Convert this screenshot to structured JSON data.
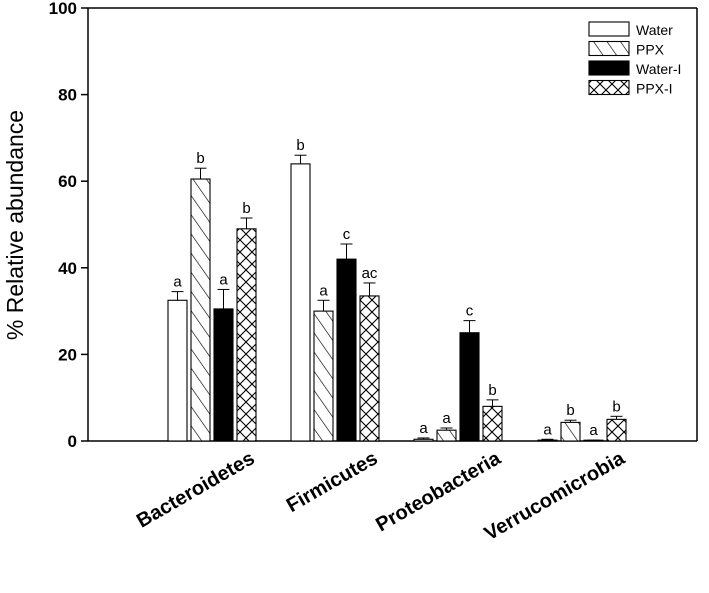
{
  "chart_data": {
    "type": "bar",
    "title": "",
    "xlabel": "",
    "ylabel": "% Relative abundance",
    "ylim": [
      0,
      100
    ],
    "yticks": [
      0,
      20,
      40,
      60,
      80,
      100
    ],
    "grid": false,
    "legend_position": "top-right",
    "categories": [
      "Bacteroidetes",
      "Firmicutes",
      "Proteobacteria",
      "Verrucomicrobia"
    ],
    "series": [
      {
        "name": "Water",
        "pattern": "empty",
        "color": "#ffffff",
        "values": [
          32.5,
          64,
          0.4,
          0.2
        ],
        "errors": [
          2,
          2,
          0.3,
          0.2
        ],
        "significance": [
          "a",
          "b",
          "a",
          "a"
        ]
      },
      {
        "name": "PPX",
        "pattern": "diagonal",
        "color": "#ffffff",
        "values": [
          60.5,
          30,
          2.5,
          4.3
        ],
        "errors": [
          2.5,
          2.5,
          0.5,
          0.5
        ],
        "significance": [
          "b",
          "a",
          "a",
          "b"
        ]
      },
      {
        "name": "Water-I",
        "pattern": "solid",
        "color": "#000000",
        "values": [
          30.5,
          42,
          25,
          0.1
        ],
        "errors": [
          4.5,
          3.5,
          2.8,
          0.1
        ],
        "significance": [
          "a",
          "c",
          "c",
          "a"
        ]
      },
      {
        "name": "PPX-I",
        "pattern": "crosshatch",
        "color": "#ffffff",
        "values": [
          49,
          33.5,
          8,
          5
        ],
        "errors": [
          2.5,
          3,
          1.5,
          0.7
        ],
        "significance": [
          "b",
          "ac",
          "b",
          "b"
        ]
      }
    ]
  }
}
